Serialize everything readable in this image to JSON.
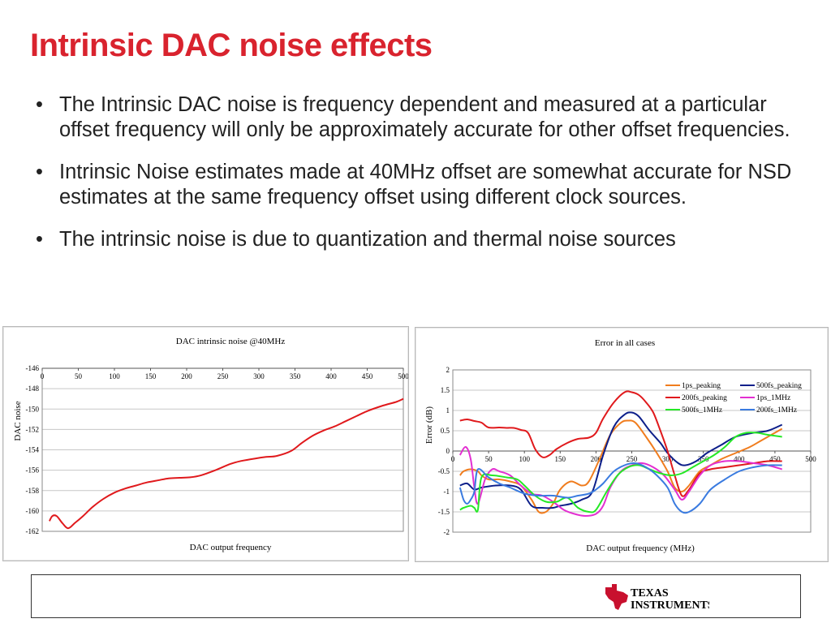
{
  "slide": {
    "title": "Intrinsic DAC noise effects",
    "bullets": [
      "The Intrinsic DAC noise is frequency dependent and measured at a particular offset frequency will only be approximately accurate for other offset frequencies.",
      "Intrinsic Noise estimates made at 40MHz offset are somewhat accurate for NSD estimates at the same frequency offset using different clock sources.",
      "The intrinsic noise is due to quantization and thermal noise sources"
    ],
    "bullet_glyph": "•",
    "title_color": "#d9232e"
  },
  "logo": {
    "line1": "TEXAS",
    "line2": "INSTRUMENTS",
    "color": "#c8102e"
  },
  "chart_data": [
    {
      "type": "line",
      "title": "DAC intrinsic noise @40MHz",
      "xlabel": "DAC output frequency",
      "ylabel": "DAC noise",
      "xlim": [
        0,
        500
      ],
      "ylim": [
        -162,
        -146
      ],
      "xticks": [
        0,
        50,
        100,
        150,
        200,
        250,
        300,
        350,
        400,
        450,
        500
      ],
      "yticks": [
        -146,
        -148,
        -150,
        -152,
        -154,
        -156,
        -158,
        -160,
        -162
      ],
      "grid": "horizontal",
      "series": [
        {
          "color": "#e0191c",
          "points": [
            [
              10,
              -161
            ],
            [
              14,
              -160.5
            ],
            [
              20,
              -160.5
            ],
            [
              28,
              -161.2
            ],
            [
              36,
              -161.7
            ],
            [
              45,
              -161.2
            ],
            [
              55,
              -160.6
            ],
            [
              70,
              -159.6
            ],
            [
              85,
              -158.8
            ],
            [
              100,
              -158.2
            ],
            [
              115,
              -157.8
            ],
            [
              130,
              -157.5
            ],
            [
              145,
              -157.2
            ],
            [
              160,
              -157.0
            ],
            [
              175,
              -156.8
            ],
            [
              190,
              -156.75
            ],
            [
              205,
              -156.7
            ],
            [
              220,
              -156.5
            ],
            [
              240,
              -156.0
            ],
            [
              260,
              -155.4
            ],
            [
              275,
              -155.1
            ],
            [
              295,
              -154.85
            ],
            [
              310,
              -154.7
            ],
            [
              325,
              -154.6
            ],
            [
              345,
              -154.1
            ],
            [
              360,
              -153.3
            ],
            [
              375,
              -152.6
            ],
            [
              390,
              -152.1
            ],
            [
              405,
              -151.7
            ],
            [
              420,
              -151.2
            ],
            [
              435,
              -150.7
            ],
            [
              450,
              -150.2
            ],
            [
              470,
              -149.7
            ],
            [
              490,
              -149.3
            ],
            [
              500,
              -149.0
            ]
          ]
        }
      ]
    },
    {
      "type": "line",
      "title": "Error in all cases",
      "xlabel": "DAC output frequency (MHz)",
      "ylabel": "Error (dB)",
      "xlim": [
        0,
        500
      ],
      "ylim": [
        -2,
        2
      ],
      "xticks": [
        0,
        50,
        100,
        150,
        200,
        250,
        300,
        350,
        400,
        450,
        500
      ],
      "yticks": [
        2,
        1.5,
        1,
        0.5,
        0,
        -0.5,
        -1,
        -1.5,
        -2
      ],
      "grid": "horizontal",
      "legend": "top-right",
      "series": [
        {
          "name": "1ps_peaking",
          "color": "#f07c1d",
          "points": [
            [
              10,
              -0.6
            ],
            [
              15,
              -0.5
            ],
            [
              25,
              -0.45
            ],
            [
              35,
              -0.5
            ],
            [
              40,
              -0.6
            ],
            [
              50,
              -0.7
            ],
            [
              65,
              -0.7
            ],
            [
              80,
              -0.75
            ],
            [
              95,
              -0.85
            ],
            [
              110,
              -1.2
            ],
            [
              120,
              -1.5
            ],
            [
              130,
              -1.5
            ],
            [
              140,
              -1.3
            ],
            [
              150,
              -0.95
            ],
            [
              165,
              -0.75
            ],
            [
              180,
              -0.85
            ],
            [
              190,
              -0.75
            ],
            [
              205,
              -0.2
            ],
            [
              220,
              0.4
            ],
            [
              235,
              0.7
            ],
            [
              245,
              0.75
            ],
            [
              255,
              0.7
            ],
            [
              270,
              0.35
            ],
            [
              285,
              -0.05
            ],
            [
              300,
              -0.5
            ],
            [
              310,
              -0.9
            ],
            [
              320,
              -1.0
            ],
            [
              330,
              -0.85
            ],
            [
              345,
              -0.5
            ],
            [
              360,
              -0.35
            ],
            [
              375,
              -0.2
            ],
            [
              395,
              -0.05
            ],
            [
              415,
              0.1
            ],
            [
              430,
              0.25
            ],
            [
              445,
              0.4
            ],
            [
              460,
              0.55
            ]
          ]
        },
        {
          "name": "500fs_peaking",
          "color": "#0d1f8a",
          "points": [
            [
              10,
              -0.85
            ],
            [
              20,
              -0.8
            ],
            [
              30,
              -0.95
            ],
            [
              40,
              -0.9
            ],
            [
              60,
              -0.85
            ],
            [
              80,
              -0.85
            ],
            [
              95,
              -0.95
            ],
            [
              110,
              -1.35
            ],
            [
              125,
              -1.4
            ],
            [
              140,
              -1.4
            ],
            [
              150,
              -1.35
            ],
            [
              165,
              -1.3
            ],
            [
              180,
              -1.2
            ],
            [
              195,
              -1.0
            ],
            [
              210,
              -0.1
            ],
            [
              225,
              0.6
            ],
            [
              240,
              0.9
            ],
            [
              250,
              0.95
            ],
            [
              260,
              0.85
            ],
            [
              275,
              0.5
            ],
            [
              290,
              0.2
            ],
            [
              300,
              -0.05
            ],
            [
              315,
              -0.3
            ],
            [
              325,
              -0.35
            ],
            [
              340,
              -0.25
            ],
            [
              355,
              -0.05
            ],
            [
              375,
              0.15
            ],
            [
              395,
              0.35
            ],
            [
              420,
              0.45
            ],
            [
              440,
              0.5
            ],
            [
              460,
              0.65
            ]
          ]
        },
        {
          "name": "200fs_peaking",
          "color": "#e0191c",
          "points": [
            [
              10,
              0.75
            ],
            [
              20,
              0.78
            ],
            [
              30,
              0.74
            ],
            [
              40,
              0.7
            ],
            [
              50,
              0.58
            ],
            [
              65,
              0.58
            ],
            [
              75,
              0.57
            ],
            [
              85,
              0.57
            ],
            [
              95,
              0.52
            ],
            [
              105,
              0.45
            ],
            [
              115,
              0.05
            ],
            [
              125,
              -0.15
            ],
            [
              135,
              -0.1
            ],
            [
              145,
              0.05
            ],
            [
              160,
              0.2
            ],
            [
              175,
              0.3
            ],
            [
              190,
              0.33
            ],
            [
              200,
              0.45
            ],
            [
              210,
              0.8
            ],
            [
              225,
              1.2
            ],
            [
              240,
              1.45
            ],
            [
              250,
              1.45
            ],
            [
              260,
              1.38
            ],
            [
              270,
              1.2
            ],
            [
              280,
              0.95
            ],
            [
              290,
              0.5
            ],
            [
              300,
              0.0
            ],
            [
              310,
              -0.6
            ],
            [
              320,
              -1.1
            ],
            [
              330,
              -0.95
            ],
            [
              345,
              -0.55
            ],
            [
              360,
              -0.45
            ],
            [
              380,
              -0.4
            ],
            [
              400,
              -0.35
            ],
            [
              420,
              -0.3
            ],
            [
              440,
              -0.25
            ],
            [
              460,
              -0.25
            ]
          ]
        },
        {
          "name": "1ps_1MHz",
          "color": "#e32fd1",
          "points": [
            [
              10,
              -0.1
            ],
            [
              18,
              0.1
            ],
            [
              25,
              -0.2
            ],
            [
              30,
              -0.9
            ],
            [
              35,
              -1.3
            ],
            [
              45,
              -0.7
            ],
            [
              55,
              -0.45
            ],
            [
              65,
              -0.5
            ],
            [
              80,
              -0.6
            ],
            [
              95,
              -0.85
            ],
            [
              110,
              -1.05
            ],
            [
              125,
              -1.1
            ],
            [
              140,
              -1.25
            ],
            [
              155,
              -1.45
            ],
            [
              170,
              -1.55
            ],
            [
              185,
              -1.6
            ],
            [
              200,
              -1.55
            ],
            [
              210,
              -1.35
            ],
            [
              220,
              -0.9
            ],
            [
              235,
              -0.5
            ],
            [
              250,
              -0.35
            ],
            [
              265,
              -0.3
            ],
            [
              280,
              -0.4
            ],
            [
              295,
              -0.6
            ],
            [
              310,
              -0.95
            ],
            [
              320,
              -1.2
            ],
            [
              330,
              -1.0
            ],
            [
              345,
              -0.6
            ],
            [
              360,
              -0.35
            ],
            [
              380,
              -0.25
            ],
            [
              400,
              -0.25
            ],
            [
              420,
              -0.3
            ],
            [
              440,
              -0.35
            ],
            [
              460,
              -0.45
            ]
          ]
        },
        {
          "name": "500fs_1MHz",
          "color": "#25e826",
          "points": [
            [
              10,
              -1.45
            ],
            [
              15,
              -1.4
            ],
            [
              25,
              -1.35
            ],
            [
              30,
              -1.4
            ],
            [
              35,
              -1.45
            ],
            [
              40,
              -0.65
            ],
            [
              55,
              -0.6
            ],
            [
              75,
              -0.65
            ],
            [
              90,
              -0.7
            ],
            [
              100,
              -0.85
            ],
            [
              115,
              -1.1
            ],
            [
              130,
              -1.25
            ],
            [
              145,
              -1.25
            ],
            [
              160,
              -1.15
            ],
            [
              175,
              -1.4
            ],
            [
              190,
              -1.5
            ],
            [
              200,
              -1.45
            ],
            [
              215,
              -1.0
            ],
            [
              230,
              -0.6
            ],
            [
              245,
              -0.4
            ],
            [
              260,
              -0.35
            ],
            [
              275,
              -0.45
            ],
            [
              290,
              -0.55
            ],
            [
              305,
              -0.6
            ],
            [
              320,
              -0.55
            ],
            [
              335,
              -0.4
            ],
            [
              350,
              -0.25
            ],
            [
              365,
              -0.1
            ],
            [
              380,
              0.1
            ],
            [
              395,
              0.35
            ],
            [
              410,
              0.45
            ],
            [
              425,
              0.45
            ],
            [
              440,
              0.4
            ],
            [
              460,
              0.35
            ]
          ]
        },
        {
          "name": "200fs_1MHz",
          "color": "#3a7be0",
          "points": [
            [
              10,
              -0.9
            ],
            [
              15,
              -1.2
            ],
            [
              20,
              -1.3
            ],
            [
              25,
              -1.2
            ],
            [
              30,
              -1.0
            ],
            [
              35,
              -0.45
            ],
            [
              50,
              -0.65
            ],
            [
              65,
              -0.8
            ],
            [
              80,
              -0.9
            ],
            [
              100,
              -1.05
            ],
            [
              120,
              -1.1
            ],
            [
              140,
              -1.1
            ],
            [
              160,
              -1.15
            ],
            [
              175,
              -1.1
            ],
            [
              190,
              -1.05
            ],
            [
              200,
              -0.95
            ],
            [
              210,
              -0.8
            ],
            [
              225,
              -0.5
            ],
            [
              240,
              -0.35
            ],
            [
              255,
              -0.3
            ],
            [
              270,
              -0.4
            ],
            [
              285,
              -0.6
            ],
            [
              300,
              -0.9
            ],
            [
              310,
              -1.3
            ],
            [
              320,
              -1.5
            ],
            [
              330,
              -1.5
            ],
            [
              345,
              -1.3
            ],
            [
              360,
              -0.95
            ],
            [
              380,
              -0.7
            ],
            [
              400,
              -0.5
            ],
            [
              420,
              -0.4
            ],
            [
              440,
              -0.35
            ],
            [
              460,
              -0.35
            ]
          ]
        }
      ]
    }
  ]
}
